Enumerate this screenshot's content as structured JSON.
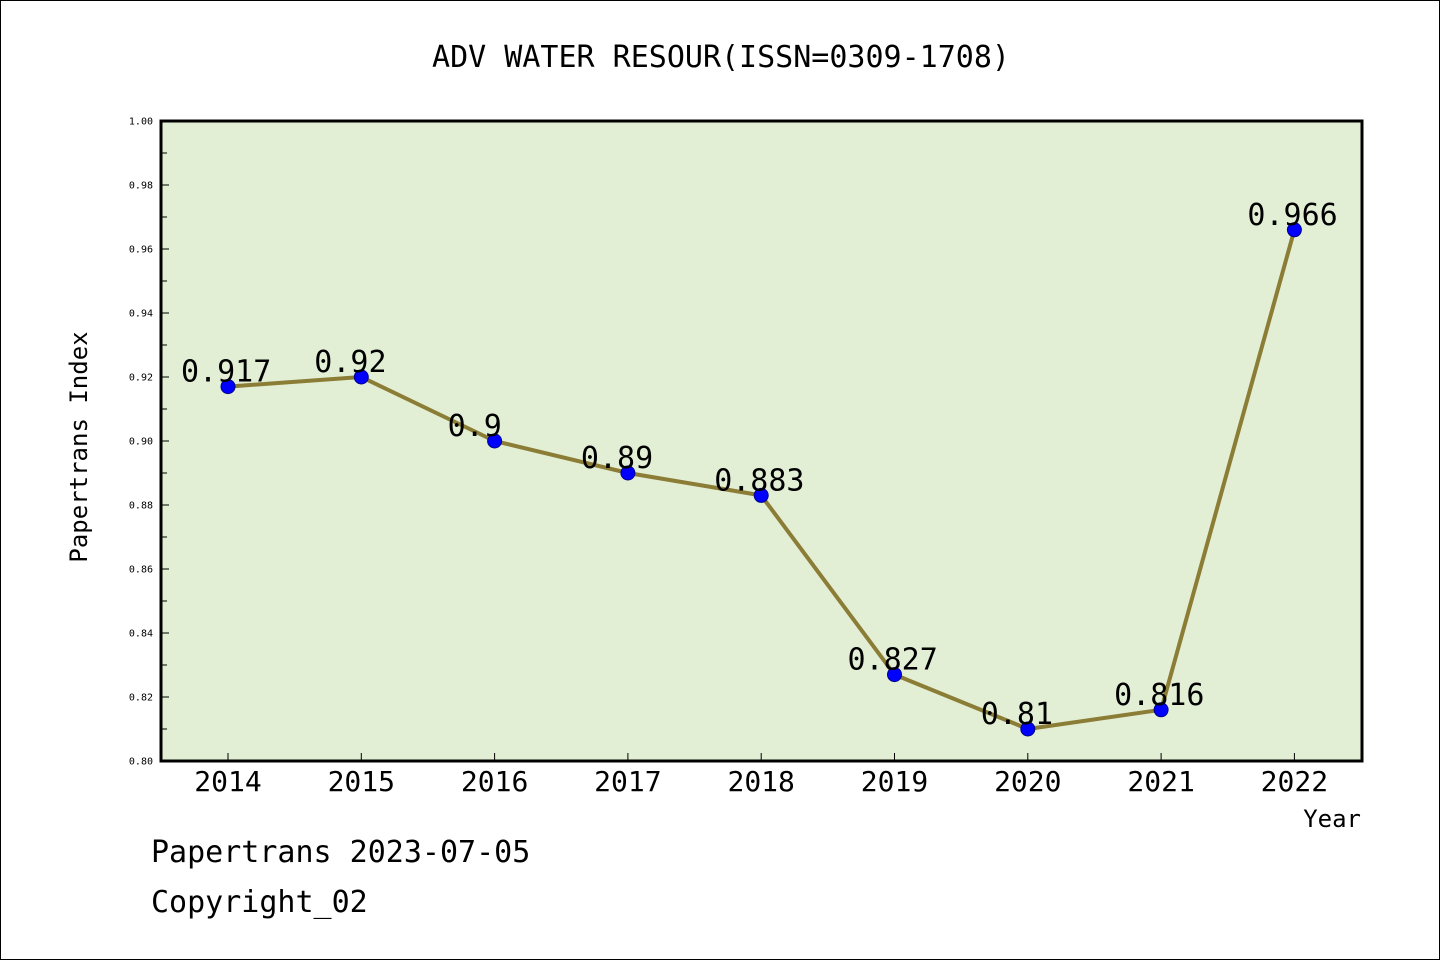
{
  "chart_data": {
    "type": "line",
    "title": "ADV WATER RESOUR(ISSN=0309-1708)",
    "xlabel": "Year",
    "ylabel": "Papertrans Index",
    "categories": [
      "2014",
      "2015",
      "2016",
      "2017",
      "2018",
      "2019",
      "2020",
      "2021",
      "2022"
    ],
    "values": [
      0.917,
      0.92,
      0.9,
      0.89,
      0.883,
      0.827,
      0.81,
      0.816,
      0.966
    ],
    "data_labels": [
      "0.917",
      "0.92",
      "0.9",
      "0.89",
      "0.883",
      "0.827",
      "0.81",
      "0.816",
      "0.966"
    ],
    "ylim": [
      0.8,
      1.0
    ],
    "yticks": [
      "0.80",
      "0.82",
      "0.84",
      "0.86",
      "0.88",
      "0.90",
      "0.92",
      "0.94",
      "0.96",
      "0.98",
      "1.00"
    ],
    "grid": false,
    "legend": "none",
    "colors": {
      "plot_background": "#e2efd5",
      "line": "#8b7d35",
      "marker": "#0000ff",
      "axis": "#000000"
    }
  },
  "footer": {
    "line1": "Papertrans 2023-07-05",
    "line2": "Copyright_02"
  }
}
